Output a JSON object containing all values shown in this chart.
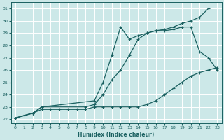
{
  "title": "",
  "xlabel": "Humidex (Indice chaleur)",
  "ylabel": "",
  "bg_color": "#cce8e8",
  "line_color": "#1a6060",
  "grid_color": "#ffffff",
  "xlim": [
    -0.5,
    23.5
  ],
  "ylim": [
    21.7,
    31.5
  ],
  "xticks": [
    0,
    1,
    2,
    3,
    4,
    5,
    6,
    7,
    8,
    9,
    10,
    11,
    12,
    13,
    14,
    15,
    16,
    17,
    18,
    19,
    20,
    21,
    22,
    23
  ],
  "yticks": [
    22,
    23,
    24,
    25,
    26,
    27,
    28,
    29,
    30,
    31
  ],
  "line1_x": [
    0,
    1,
    2,
    3,
    4,
    5,
    6,
    7,
    8,
    9,
    10,
    11,
    12,
    13,
    14,
    15,
    16,
    17,
    18,
    19,
    20,
    21,
    22,
    23
  ],
  "line1_y": [
    22.1,
    22.3,
    22.5,
    22.8,
    22.8,
    22.8,
    22.8,
    22.8,
    22.8,
    23.0,
    23.0,
    23.0,
    23.0,
    23.0,
    23.0,
    23.2,
    23.5,
    24.0,
    24.5,
    25.0,
    25.5,
    25.8,
    26.0,
    26.2
  ],
  "line2_x": [
    0,
    2,
    3,
    8,
    9,
    10,
    11,
    12,
    13,
    14,
    15,
    16,
    17,
    18,
    19,
    20,
    21,
    22,
    23
  ],
  "line2_y": [
    22.1,
    22.5,
    23.0,
    23.0,
    23.2,
    24.0,
    25.2,
    26.0,
    27.2,
    28.5,
    29.0,
    29.2,
    29.2,
    29.3,
    29.5,
    29.5,
    27.5,
    27.0,
    26.0
  ],
  "line3_x": [
    0,
    2,
    3,
    9,
    10,
    11,
    12,
    13,
    14,
    15,
    16,
    17,
    18,
    19,
    20,
    21,
    22
  ],
  "line3_y": [
    22.1,
    22.5,
    23.0,
    23.5,
    25.0,
    27.2,
    29.5,
    28.5,
    28.8,
    29.0,
    29.2,
    29.3,
    29.5,
    29.8,
    30.0,
    30.3,
    31.0
  ]
}
